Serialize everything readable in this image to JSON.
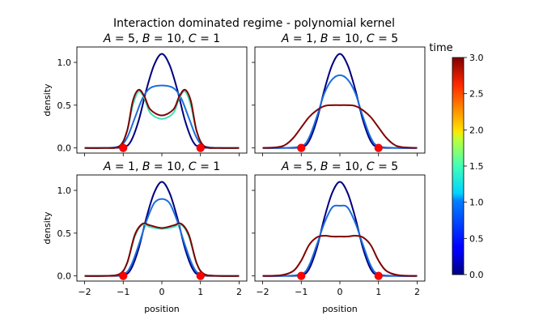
{
  "figure": {
    "title": "Interaction dominated regime - polynomial kernel",
    "colorbar": {
      "label": "time",
      "range": [
        0.0,
        3.0
      ],
      "ticks": [
        "0.0",
        "0.5",
        "1.0",
        "1.5",
        "2.0",
        "2.5",
        "3.0"
      ],
      "colormap": "jet"
    }
  },
  "chart_data": [
    {
      "type": "line",
      "title_parts": {
        "A": "5",
        "B": "10",
        "C": "1"
      },
      "xlabel": "",
      "ylabel": "density",
      "xlim": [
        -2.2,
        2.2
      ],
      "ylim": [
        -0.06,
        1.18
      ],
      "x_ticks": [
        "−2",
        "−1",
        "0",
        "1",
        "2"
      ],
      "y_ticks": [
        "0.0",
        "0.5",
        "1.0"
      ],
      "markers": [
        {
          "x": -1,
          "y": 0
        },
        {
          "x": 1,
          "y": 0
        }
      ],
      "series": [
        {
          "name": "t=0.0",
          "color": "#00007f",
          "x": [
            -2.0,
            -1.5,
            -1.0,
            -0.8,
            -0.6,
            -0.4,
            -0.2,
            0,
            0.2,
            0.4,
            0.6,
            0.8,
            1.0,
            1.5,
            2.0
          ],
          "y": [
            0,
            0,
            0.01,
            0.08,
            0.32,
            0.68,
            0.97,
            1.1,
            0.97,
            0.68,
            0.32,
            0.08,
            0.01,
            0,
            0
          ]
        },
        {
          "name": "t=1.0",
          "color": "#1a6ddc",
          "x": [
            -2.0,
            -1.5,
            -1.1,
            -0.9,
            -0.7,
            -0.5,
            -0.3,
            0,
            0.3,
            0.5,
            0.7,
            0.9,
            1.1,
            1.5,
            2.0
          ],
          "y": [
            0,
            0,
            0.02,
            0.12,
            0.35,
            0.58,
            0.7,
            0.73,
            0.7,
            0.58,
            0.35,
            0.12,
            0.02,
            0,
            0
          ]
        },
        {
          "name": "t=1.5",
          "color": "#3fe0b8",
          "x": [
            -2.0,
            -1.5,
            -1.1,
            -0.9,
            -0.75,
            -0.6,
            -0.45,
            -0.3,
            0,
            0.3,
            0.45,
            0.6,
            0.75,
            0.9,
            1.1,
            1.5,
            2.0
          ],
          "y": [
            0,
            0,
            0.02,
            0.2,
            0.5,
            0.66,
            0.58,
            0.41,
            0.34,
            0.41,
            0.58,
            0.66,
            0.5,
            0.2,
            0.02,
            0,
            0
          ]
        },
        {
          "name": "t=3.0",
          "color": "#7f0000",
          "x": [
            -2.0,
            -1.5,
            -1.1,
            -0.9,
            -0.75,
            -0.6,
            -0.45,
            -0.3,
            0,
            0.3,
            0.45,
            0.6,
            0.75,
            0.9,
            1.1,
            1.5,
            2.0
          ],
          "y": [
            0,
            0,
            0.02,
            0.2,
            0.55,
            0.68,
            0.6,
            0.45,
            0.38,
            0.45,
            0.6,
            0.68,
            0.55,
            0.2,
            0.02,
            0,
            0
          ]
        }
      ]
    },
    {
      "type": "line",
      "title_parts": {
        "A": "1",
        "B": "10",
        "C": "5"
      },
      "xlabel": "",
      "ylabel": "",
      "xlim": [
        -2.2,
        2.2
      ],
      "ylim": [
        -0.06,
        1.18
      ],
      "x_ticks": [
        "−2",
        "−1",
        "0",
        "1",
        "2"
      ],
      "y_ticks": [
        "0.0",
        "0.5",
        "1.0"
      ],
      "markers": [
        {
          "x": -1,
          "y": 0
        },
        {
          "x": 1,
          "y": 0
        }
      ],
      "series": [
        {
          "name": "t=0.0",
          "color": "#00007f",
          "x": [
            -2.0,
            -1.5,
            -1.0,
            -0.8,
            -0.6,
            -0.4,
            -0.2,
            0,
            0.2,
            0.4,
            0.6,
            0.8,
            1.0,
            1.5,
            2.0
          ],
          "y": [
            0,
            0,
            0.01,
            0.08,
            0.32,
            0.68,
            0.97,
            1.1,
            0.97,
            0.68,
            0.32,
            0.08,
            0.01,
            0,
            0
          ]
        },
        {
          "name": "t=1.0",
          "color": "#1a6ddc",
          "x": [
            -2.0,
            -1.5,
            -1.0,
            -0.8,
            -0.6,
            -0.4,
            -0.2,
            0,
            0.2,
            0.4,
            0.6,
            0.8,
            1.0,
            1.5,
            2.0
          ],
          "y": [
            0,
            0,
            0.02,
            0.12,
            0.36,
            0.64,
            0.8,
            0.85,
            0.8,
            0.64,
            0.36,
            0.12,
            0.02,
            0,
            0
          ]
        },
        {
          "name": "t=3.0",
          "color": "#7f0000",
          "x": [
            -2.0,
            -1.6,
            -1.4,
            -1.2,
            -1.0,
            -0.8,
            -0.6,
            -0.4,
            -0.2,
            0,
            0.2,
            0.4,
            0.6,
            0.8,
            1.0,
            1.2,
            1.4,
            1.6,
            2.0
          ],
          "y": [
            0,
            0.01,
            0.04,
            0.12,
            0.24,
            0.36,
            0.44,
            0.49,
            0.5,
            0.5,
            0.5,
            0.49,
            0.44,
            0.36,
            0.24,
            0.12,
            0.04,
            0.01,
            0
          ]
        }
      ]
    },
    {
      "type": "line",
      "title_parts": {
        "A": "1",
        "B": "10",
        "C": "1"
      },
      "xlabel": "position",
      "ylabel": "density",
      "xlim": [
        -2.2,
        2.2
      ],
      "ylim": [
        -0.06,
        1.18
      ],
      "x_ticks": [
        "−2",
        "−1",
        "0",
        "1",
        "2"
      ],
      "y_ticks": [
        "0.0",
        "0.5",
        "1.0"
      ],
      "markers": [
        {
          "x": -1,
          "y": 0
        },
        {
          "x": 1,
          "y": 0
        }
      ],
      "series": [
        {
          "name": "t=0.0",
          "color": "#00007f",
          "x": [
            -2.0,
            -1.5,
            -1.0,
            -0.8,
            -0.6,
            -0.4,
            -0.2,
            0,
            0.2,
            0.4,
            0.6,
            0.8,
            1.0,
            1.5,
            2.0
          ],
          "y": [
            0,
            0,
            0.01,
            0.08,
            0.32,
            0.68,
            0.97,
            1.1,
            0.97,
            0.68,
            0.32,
            0.08,
            0.01,
            0,
            0
          ]
        },
        {
          "name": "t=1.0",
          "color": "#1a6ddc",
          "x": [
            -2.0,
            -1.5,
            -1.0,
            -0.8,
            -0.6,
            -0.4,
            -0.2,
            0,
            0.2,
            0.4,
            0.6,
            0.8,
            1.0,
            1.5,
            2.0
          ],
          "y": [
            0,
            0,
            0.02,
            0.12,
            0.36,
            0.64,
            0.85,
            0.9,
            0.85,
            0.64,
            0.36,
            0.12,
            0.02,
            0,
            0
          ]
        },
        {
          "name": "t=1.5",
          "color": "#3fe0b8",
          "x": [
            -2.0,
            -1.5,
            -1.1,
            -0.9,
            -0.7,
            -0.5,
            -0.3,
            0,
            0.3,
            0.5,
            0.7,
            0.9,
            1.1,
            1.5,
            2.0
          ],
          "y": [
            0,
            0,
            0.02,
            0.15,
            0.46,
            0.6,
            0.57,
            0.55,
            0.57,
            0.6,
            0.46,
            0.15,
            0.02,
            0,
            0
          ]
        },
        {
          "name": "t=3.0",
          "color": "#7f0000",
          "x": [
            -2.0,
            -1.5,
            -1.1,
            -0.9,
            -0.7,
            -0.5,
            -0.3,
            0,
            0.3,
            0.5,
            0.7,
            0.9,
            1.1,
            1.5,
            2.0
          ],
          "y": [
            0,
            0,
            0.02,
            0.15,
            0.48,
            0.61,
            0.59,
            0.56,
            0.59,
            0.61,
            0.48,
            0.15,
            0.02,
            0,
            0
          ]
        }
      ]
    },
    {
      "type": "line",
      "title_parts": {
        "A": "5",
        "B": "10",
        "C": "5"
      },
      "xlabel": "position",
      "ylabel": "",
      "xlim": [
        -2.2,
        2.2
      ],
      "ylim": [
        -0.06,
        1.18
      ],
      "x_ticks": [
        "−2",
        "−1",
        "0",
        "1",
        "2"
      ],
      "y_ticks": [
        "0.0",
        "0.5",
        "1.0"
      ],
      "markers": [
        {
          "x": -1,
          "y": 0
        },
        {
          "x": 1,
          "y": 0
        }
      ],
      "series": [
        {
          "name": "t=0.0",
          "color": "#00007f",
          "x": [
            -2.0,
            -1.5,
            -1.0,
            -0.8,
            -0.6,
            -0.4,
            -0.2,
            0,
            0.2,
            0.4,
            0.6,
            0.8,
            1.0,
            1.5,
            2.0
          ],
          "y": [
            0,
            0,
            0.01,
            0.08,
            0.32,
            0.68,
            0.97,
            1.1,
            0.97,
            0.68,
            0.32,
            0.08,
            0.01,
            0,
            0
          ]
        },
        {
          "name": "t=1.0",
          "color": "#1a6ddc",
          "x": [
            -2.0,
            -1.5,
            -1.0,
            -0.8,
            -0.6,
            -0.4,
            -0.2,
            0,
            0.2,
            0.4,
            0.6,
            0.8,
            1.0,
            1.5,
            2.0
          ],
          "y": [
            0,
            0,
            0.02,
            0.12,
            0.36,
            0.62,
            0.8,
            0.82,
            0.8,
            0.62,
            0.36,
            0.12,
            0.02,
            0,
            0
          ]
        },
        {
          "name": "t=3.0",
          "color": "#7f0000",
          "x": [
            -2.0,
            -1.5,
            -1.2,
            -1.0,
            -0.8,
            -0.6,
            -0.4,
            -0.2,
            0,
            0.2,
            0.4,
            0.6,
            0.8,
            1.0,
            1.2,
            1.5,
            2.0
          ],
          "y": [
            0,
            0.01,
            0.06,
            0.18,
            0.36,
            0.45,
            0.47,
            0.46,
            0.46,
            0.46,
            0.47,
            0.45,
            0.36,
            0.18,
            0.06,
            0.01,
            0
          ]
        }
      ]
    }
  ]
}
